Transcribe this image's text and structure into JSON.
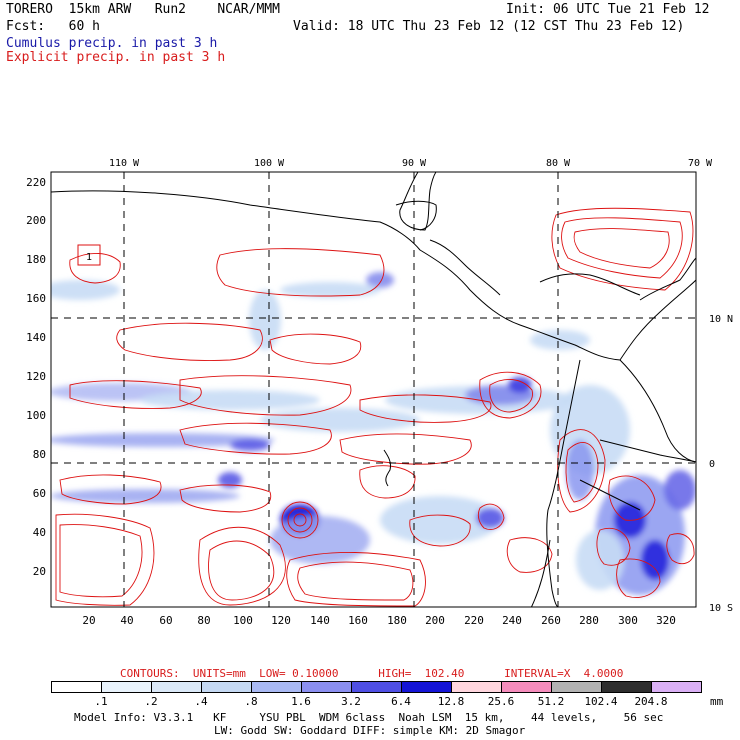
{
  "header": {
    "line1_left": "TORERO  15km ARW   Run2    NCAR/MMM",
    "line1_right": "Init: 06 UTC Tue 21 Feb 12",
    "line2_left": "Fcst:   60 h",
    "line2_right": "Valid: 18 UTC Thu 23 Feb 12 (12 CST Thu 23 Feb 12)",
    "legend_cumulus": "Cumulus precip. in past 3 h",
    "legend_explicit": "Explicit precip. in past 3 h"
  },
  "map": {
    "top_lon_labels": [
      "110 W",
      "100 W",
      "90 W",
      "80 W",
      "70 W"
    ],
    "right_lat_labels": [
      "10 N",
      "0",
      "10 S"
    ],
    "y_ticks": [
      "220",
      "200",
      "180",
      "160",
      "140",
      "120",
      "100",
      "80",
      "60",
      "40",
      "20"
    ],
    "x_ticks": [
      "20",
      "40",
      "60",
      "80",
      "100",
      "120",
      "140",
      "160",
      "180",
      "200",
      "220",
      "240",
      "260",
      "280",
      "300",
      "320"
    ],
    "box_label": "1",
    "precip_colors": {
      "light_blue": "#c8dcf5",
      "blue": "#8a96f0",
      "dark_blue": "#2020d8",
      "contour_red": "#dd1111"
    }
  },
  "footer": {
    "contours_label": "CONTOURS:  UNITS=mm  LOW= 0.10000      HIGH=  102.40      INTERVAL=X  4.0000",
    "colorbar_values": [
      ".1",
      ".2",
      ".4",
      ".8",
      "1.6",
      "3.2",
      "6.4",
      "12.8",
      "25.6",
      "51.2",
      "102.4",
      "204.8"
    ],
    "colorbar_colors": [
      "#ffffff",
      "#e9f3fc",
      "#dbe9f8",
      "#c5d9f3",
      "#a9b9f3",
      "#8b8ff0",
      "#4f4fe4",
      "#1414d6",
      "#ffd6de",
      "#f58cbc",
      "#b2b2b2",
      "#2e2e2e",
      "#dab0f5"
    ],
    "colorbar_unit": "mm",
    "model_info_line1": "Model Info: V3.3.1   KF     YSU PBL  WDM 6class  Noah LSM  15 km,    44 levels,    56 sec",
    "model_info_line2": "LW: Godd SW: Goddard DIFF: simple KM: 2D Smagor"
  }
}
